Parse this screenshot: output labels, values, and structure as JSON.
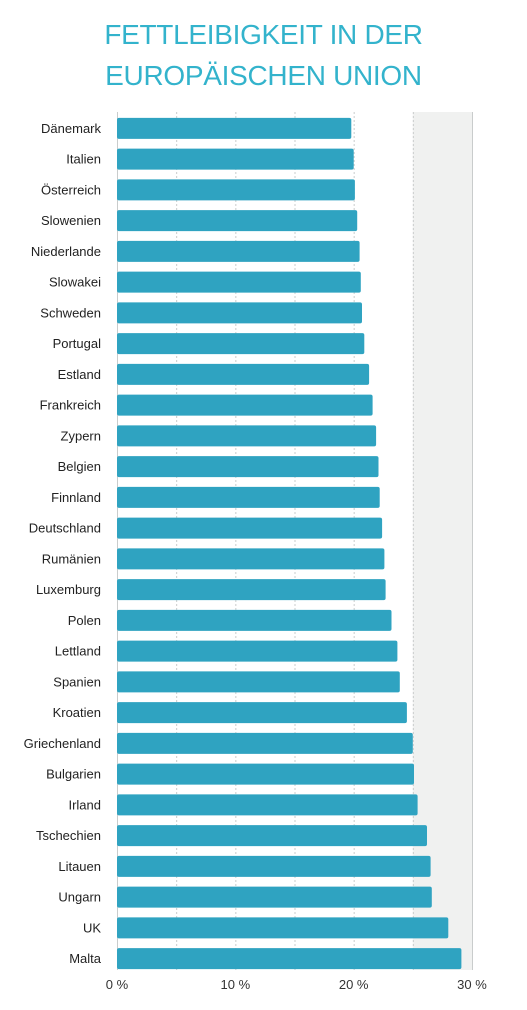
{
  "title_lines": [
    "FETTLEIBIGKEIT IN DER",
    "EUROPÄISCHEN UNION"
  ],
  "colors": {
    "title": "#33b3cc",
    "bar": "#2fa3c1",
    "grid_band": "#f0f1f0",
    "grid_line": "#c9cccc"
  },
  "chart_data": {
    "type": "bar",
    "orientation": "horizontal",
    "title": "FETTLEIBIGKEIT IN DER EUROPÄISCHEN UNION",
    "categories": [
      "Dänemark",
      "Italien",
      "Österreich",
      "Slowenien",
      "Niederlande",
      "Slowakei",
      "Schweden",
      "Portugal",
      "Estland",
      "Frankreich",
      "Zypern",
      "Belgien",
      "Finnland",
      "Deutschland",
      "Rumänien",
      "Luxemburg",
      "Polen",
      "Lettland",
      "Spanien",
      "Kroatien",
      "Griechenland",
      "Bulgarien",
      "Irland",
      "Tschechien",
      "Litauen",
      "Ungarn",
      "UK",
      "Malta"
    ],
    "values": [
      19.8,
      20.0,
      20.1,
      20.3,
      20.5,
      20.6,
      20.7,
      20.9,
      21.3,
      21.6,
      21.9,
      22.1,
      22.2,
      22.4,
      22.6,
      22.7,
      23.2,
      23.7,
      23.9,
      24.5,
      25.0,
      25.1,
      25.4,
      26.2,
      26.5,
      26.6,
      28.0,
      29.1
    ],
    "xlim": [
      0,
      30
    ],
    "xticks": [
      0,
      10,
      20,
      30
    ],
    "xtick_labels": [
      "0 %",
      "10 %",
      "20 %",
      "30 %"
    ],
    "grid": true
  }
}
